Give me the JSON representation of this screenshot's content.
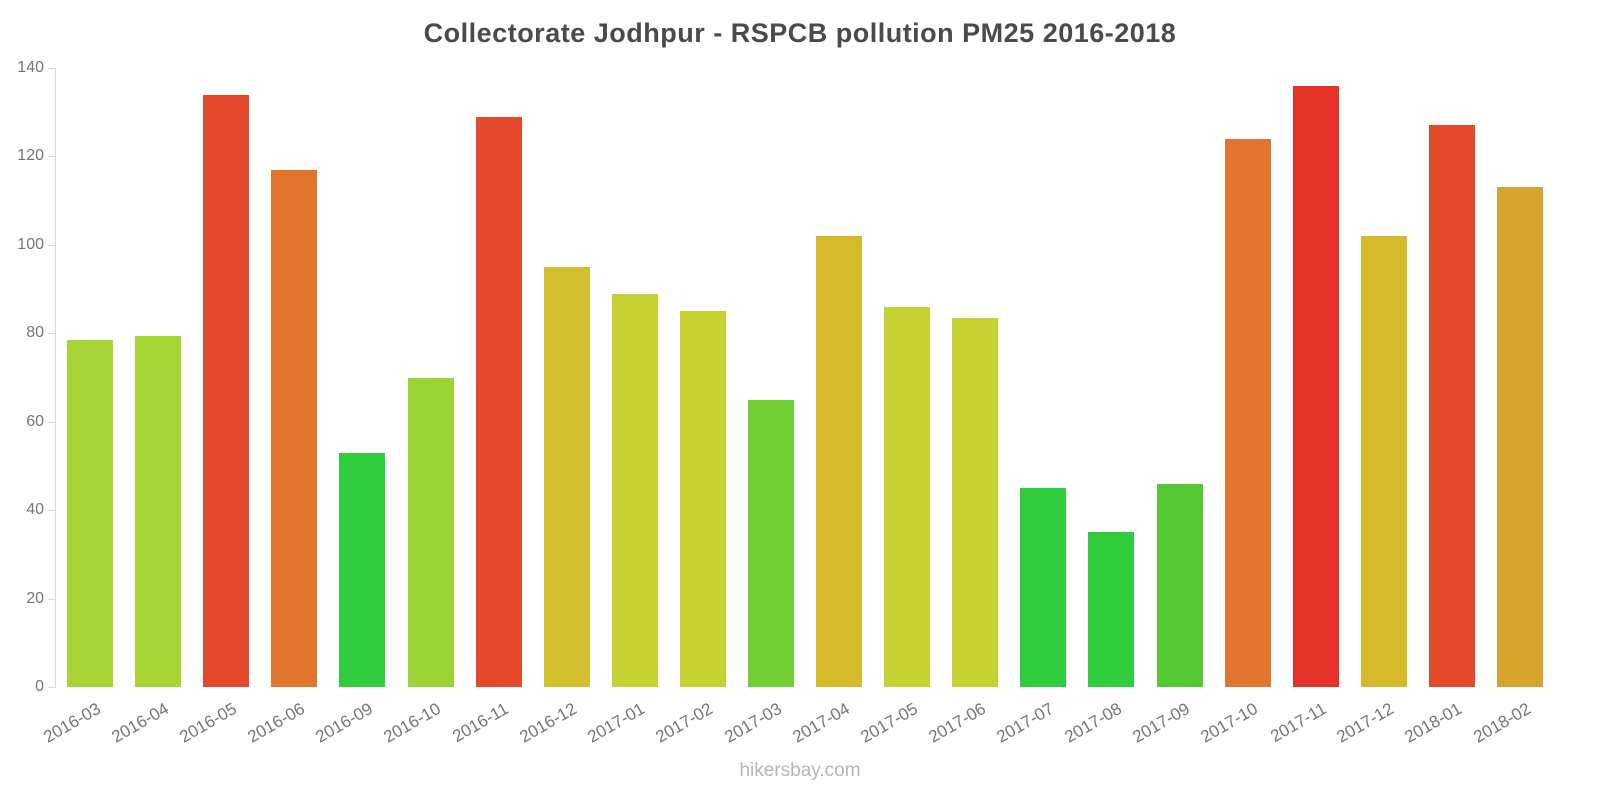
{
  "chart_data": {
    "type": "bar",
    "title": "Collectorate Jodhpur - RSPCB pollution PM25 2016-2018",
    "xlabel": "",
    "ylabel": "",
    "ylim": [
      0,
      140
    ],
    "yticks": [
      0,
      20,
      40,
      60,
      80,
      100,
      120,
      140
    ],
    "grid": false,
    "legend": "none",
    "categories": [
      "2016-03",
      "2016-04",
      "2016-05",
      "2016-06",
      "2016-09",
      "2016-10",
      "2016-11",
      "2016-12",
      "2017-01",
      "2017-02",
      "2017-03",
      "2017-04",
      "2017-05",
      "2017-06",
      "2017-07",
      "2017-08",
      "2017-09",
      "2017-10",
      "2017-11",
      "2017-12",
      "2018-01",
      "2018-02"
    ],
    "values": [
      78.5,
      79.5,
      134,
      117,
      53,
      70,
      129,
      95,
      89,
      85,
      65,
      102,
      86,
      83.5,
      45,
      35,
      46,
      124,
      136,
      102,
      127,
      113
    ],
    "colors": [
      "#a8d334",
      "#a8d334",
      "#e2492d",
      "#e0762e",
      "#2fcc3e",
      "#9cd334",
      "#e2492d",
      "#d2c02e",
      "#c6d232",
      "#c6d232",
      "#73cf36",
      "#d6ba2c",
      "#c6d232",
      "#c6d232",
      "#2fcc3e",
      "#2fcc3e",
      "#55c934",
      "#e0762e",
      "#e6332a",
      "#d6ba2c",
      "#e2492d",
      "#d8a32c"
    ]
  },
  "footer": {
    "watermark": "hikersbay.com"
  }
}
